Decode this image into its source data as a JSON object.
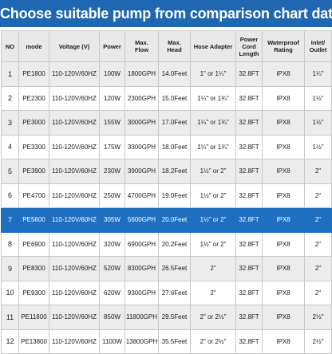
{
  "title": "Choose suitable pump from comparison chart data",
  "headers": [
    "NO",
    "mode",
    "Voltage (V)",
    "Power",
    "Max.\nFlow",
    "Max.\nHead",
    "Hose Adapter",
    "Power\nCord\nLength",
    "Waterproof\nRating",
    "Inlet/\nOutlet"
  ],
  "rows": [
    [
      "1",
      "PE1800",
      "110-120V/60HZ",
      "100W",
      "1800GPH",
      "14.0Feet",
      "1\" or 1¼\"",
      "32.8FT",
      "IPX8",
      "1¼\""
    ],
    [
      "2",
      "PE2300",
      "110-120V/60HZ",
      "120W",
      "2300GPH",
      "15.0Feet",
      "1¼\" or 1¾\"",
      "32.8FT",
      "IPX8",
      "1½\""
    ],
    [
      "3",
      "PE3000",
      "110-120V/60HZ",
      "155W",
      "3000GPH",
      "17.0Feet",
      "1¼\" or 1¾\"",
      "32.8FT",
      "IPX8",
      "1½\""
    ],
    [
      "4",
      "PE3300",
      "110-120V/60HZ",
      "175W",
      "3300GPH",
      "18.0Feet",
      "1¼\" or 1¾\"",
      "32.8FT",
      "IPX8",
      "1½\""
    ],
    [
      "5",
      "PE3900",
      "110-120V/60HZ",
      "230W",
      "3900GPH",
      "18.2Feet",
      "1½\" or 2\"",
      "32.8FT",
      "IPX8",
      "2\""
    ],
    [
      "6",
      "PE4700",
      "110-120V/60HZ",
      "250W",
      "4700GPH",
      "19.0Feet",
      "1½\" or 2\"",
      "32.8FT",
      "IPX8",
      "2\""
    ],
    [
      "7",
      "PE5600",
      "110-120V/60HZ",
      "305W",
      "5600GPH",
      "20.0Feet",
      "1½\" or 2\"",
      "32.8FT",
      "IPX8",
      "2\""
    ],
    [
      "8",
      "PE6900",
      "110-120V/60HZ",
      "320W",
      "6900GPH",
      "20.2Feet",
      "1½\" or 2\"",
      "32.8FT",
      "IPX8",
      "2\""
    ],
    [
      "9",
      "PE8300",
      "110-120V/60HZ",
      "520W",
      "8300GPH",
      "26.5Feet",
      "2\"",
      "32.8FT",
      "IPX8",
      "2\""
    ],
    [
      "10",
      "PE9300",
      "110-120V/60HZ",
      "620W",
      "9300GPH",
      "27.6Feet",
      "2\"",
      "32.8FT",
      "IPX8",
      "2\""
    ],
    [
      "11",
      "PE11800",
      "110-120V/60HZ",
      "850W",
      "11800GPH",
      "29.5Feet",
      "2\" or 2½\"",
      "32.8FT",
      "IPX8",
      "2½\""
    ],
    [
      "12",
      "PE13800",
      "110-120V/60HZ",
      "1100W",
      "13800GPH",
      "35.5Feet",
      "2\" or 2½\"",
      "32.8FT",
      "IPX8",
      "2½\""
    ]
  ],
  "highlight_row": 6,
  "colors": {
    "banner": "#1f67b1",
    "highlight": "#1f6fc0",
    "header_bg": "#e9e9e9",
    "stripe": "#ececec"
  }
}
